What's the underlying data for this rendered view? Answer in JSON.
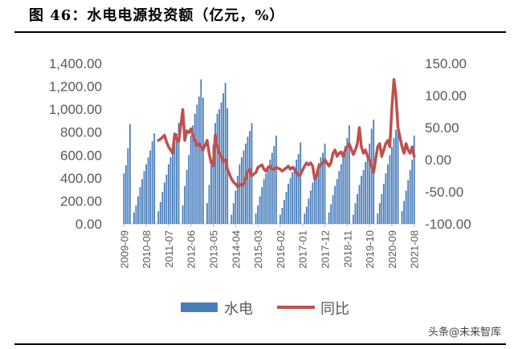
{
  "title": "图 46：水电电源投资额（亿元，%）",
  "watermark": "头条@未来智库",
  "colors": {
    "bar": "#4a7ebb",
    "line": "#c0504d",
    "axis": "#bfbfbf",
    "text": "#595959"
  },
  "chart_data": {
    "type": "bar+line",
    "title": "",
    "xlabel": "",
    "ylabel": "",
    "y_left": {
      "min": 0,
      "max": 1400,
      "step": 200,
      "ticks": [
        "0.00",
        "200.00",
        "400.00",
        "600.00",
        "800.00",
        "1,000.00",
        "1,200.00",
        "1,400.00"
      ]
    },
    "y_right": {
      "min": -100,
      "max": 150,
      "step": 50,
      "ticks": [
        "-100.00",
        "-50.00",
        "0.00",
        "50.00",
        "100.00",
        "150.00"
      ]
    },
    "x_tick_labels": [
      "2009-09",
      "2010-08",
      "2011-07",
      "2012-06",
      "2013-05",
      "2014-04",
      "2015-03",
      "2016-02",
      "2017-01",
      "2017-12",
      "2018-11",
      "2019-10",
      "2020-09",
      "2021-08"
    ],
    "legend": {
      "position": "bottom",
      "labels": [
        "水电",
        "同比"
      ]
    },
    "series": [
      {
        "name": "水电",
        "type": "bar",
        "axis": "left",
        "x": [
          "2009-09",
          "2009-10",
          "2009-11",
          "2009-12",
          "2010-02",
          "2010-03",
          "2010-04",
          "2010-05",
          "2010-06",
          "2010-07",
          "2010-08",
          "2010-09",
          "2010-10",
          "2010-11",
          "2010-12",
          "2011-02",
          "2011-03",
          "2011-04",
          "2011-05",
          "2011-06",
          "2011-07",
          "2011-08",
          "2011-09",
          "2011-10",
          "2011-11",
          "2011-12",
          "2012-02",
          "2012-03",
          "2012-04",
          "2012-05",
          "2012-06",
          "2012-07",
          "2012-08",
          "2012-09",
          "2012-10",
          "2012-11",
          "2012-12",
          "2013-02",
          "2013-03",
          "2013-04",
          "2013-05",
          "2013-06",
          "2013-07",
          "2013-08",
          "2013-09",
          "2013-10",
          "2013-11",
          "2013-12",
          "2014-02",
          "2014-03",
          "2014-04",
          "2014-05",
          "2014-06",
          "2014-07",
          "2014-08",
          "2014-09",
          "2014-10",
          "2014-11",
          "2014-12",
          "2015-02",
          "2015-03",
          "2015-04",
          "2015-05",
          "2015-06",
          "2015-07",
          "2015-08",
          "2015-09",
          "2015-10",
          "2015-11",
          "2015-12",
          "2016-02",
          "2016-03",
          "2016-04",
          "2016-05",
          "2016-06",
          "2016-07",
          "2016-08",
          "2016-09",
          "2016-10",
          "2016-11",
          "2016-12",
          "2017-02",
          "2017-03",
          "2017-04",
          "2017-05",
          "2017-06",
          "2017-07",
          "2017-08",
          "2017-09",
          "2017-10",
          "2017-11",
          "2017-12",
          "2018-02",
          "2018-03",
          "2018-04",
          "2018-05",
          "2018-06",
          "2018-07",
          "2018-08",
          "2018-09",
          "2018-10",
          "2018-11",
          "2018-12",
          "2019-02",
          "2019-03",
          "2019-04",
          "2019-05",
          "2019-06",
          "2019-07",
          "2019-08",
          "2019-09",
          "2019-10",
          "2019-11",
          "2019-12",
          "2020-02",
          "2020-03",
          "2020-04",
          "2020-05",
          "2020-06",
          "2020-07",
          "2020-08",
          "2020-09",
          "2020-10",
          "2020-11",
          "2020-12",
          "2021-02",
          "2021-03",
          "2021-04",
          "2021-05",
          "2021-06",
          "2021-07",
          "2021-08"
        ],
        "values": [
          440,
          510,
          660,
          870,
          100,
          160,
          240,
          320,
          390,
          460,
          520,
          580,
          640,
          720,
          790,
          110,
          190,
          280,
          360,
          430,
          520,
          580,
          660,
          720,
          790,
          880,
          160,
          330,
          470,
          600,
          770,
          860,
          960,
          1040,
          1110,
          1260,
          1100,
          180,
          340,
          510,
          690,
          880,
          960,
          1000,
          1060,
          1140,
          1230,
          1010,
          80,
          180,
          290,
          420,
          520,
          580,
          640,
          700,
          760,
          810,
          880,
          90,
          160,
          240,
          320,
          390,
          440,
          500,
          560,
          620,
          680,
          770,
          80,
          140,
          210,
          280,
          350,
          400,
          450,
          500,
          560,
          610,
          710,
          90,
          150,
          220,
          290,
          360,
          410,
          470,
          530,
          580,
          620,
          700,
          100,
          170,
          250,
          330,
          390,
          460,
          520,
          600,
          680,
          750,
          860,
          80,
          180,
          260,
          340,
          420,
          470,
          540,
          620,
          700,
          830,
          910,
          90,
          180,
          260,
          350,
          440,
          520,
          600,
          670,
          750,
          820,
          980,
          110,
          200,
          290,
          380,
          470,
          560,
          770
        ]
      },
      {
        "name": "同比",
        "type": "line",
        "axis": "right",
        "x": [
          "2011-02",
          "2011-03",
          "2011-04",
          "2011-05",
          "2011-06",
          "2011-07",
          "2011-08",
          "2011-09",
          "2011-10",
          "2011-11",
          "2011-12",
          "2012-02",
          "2012-03",
          "2012-04",
          "2012-05",
          "2012-06",
          "2012-07",
          "2012-08",
          "2012-09",
          "2012-10",
          "2012-11",
          "2012-12",
          "2013-02",
          "2013-03",
          "2013-04",
          "2013-05",
          "2013-06",
          "2013-07",
          "2013-08",
          "2013-09",
          "2013-10",
          "2013-11",
          "2013-12",
          "2014-02",
          "2014-03",
          "2014-04",
          "2014-05",
          "2014-06",
          "2014-07",
          "2014-08",
          "2014-09",
          "2014-10",
          "2014-11",
          "2014-12",
          "2015-02",
          "2015-03",
          "2015-04",
          "2015-05",
          "2015-06",
          "2015-07",
          "2015-08",
          "2015-09",
          "2015-10",
          "2015-11",
          "2015-12",
          "2016-02",
          "2016-03",
          "2016-04",
          "2016-05",
          "2016-06",
          "2016-07",
          "2016-08",
          "2016-09",
          "2016-10",
          "2016-11",
          "2016-12",
          "2017-02",
          "2017-03",
          "2017-04",
          "2017-05",
          "2017-06",
          "2017-07",
          "2017-08",
          "2017-09",
          "2017-10",
          "2017-11",
          "2017-12",
          "2018-02",
          "2018-03",
          "2018-04",
          "2018-05",
          "2018-06",
          "2018-07",
          "2018-08",
          "2018-09",
          "2018-10",
          "2018-11",
          "2018-12",
          "2019-02",
          "2019-03",
          "2019-04",
          "2019-05",
          "2019-06",
          "2019-07",
          "2019-08",
          "2019-09",
          "2019-10",
          "2019-11",
          "2019-12",
          "2020-02",
          "2020-03",
          "2020-04",
          "2020-05",
          "2020-06",
          "2020-07",
          "2020-08",
          "2020-09",
          "2020-10",
          "2020-11",
          "2020-12",
          "2021-02",
          "2021-03",
          "2021-04",
          "2021-05",
          "2021-06",
          "2021-07",
          "2021-08"
        ],
        "values": [
          30,
          32,
          35,
          38,
          28,
          20,
          15,
          10,
          40,
          32,
          28,
          78,
          30,
          45,
          42,
          48,
          38,
          30,
          22,
          25,
          20,
          15,
          30,
          10,
          -5,
          -10,
          38,
          20,
          10,
          5,
          -3,
          0,
          -15,
          -30,
          -35,
          -38,
          -42,
          -38,
          -40,
          -38,
          -30,
          -18,
          -15,
          -25,
          -20,
          -12,
          -10,
          -8,
          -15,
          -18,
          -12,
          -10,
          -15,
          -15,
          -12,
          -15,
          -18,
          -15,
          -13,
          -10,
          -15,
          -12,
          -15,
          -20,
          -25,
          -23,
          -10,
          -5,
          -8,
          -5,
          -10,
          -30,
          -25,
          -10,
          -8,
          -5,
          0,
          -10,
          -5,
          10,
          15,
          5,
          10,
          12,
          5,
          15,
          20,
          25,
          8,
          15,
          25,
          50,
          20,
          10,
          15,
          5,
          0,
          -10,
          -20,
          20,
          25,
          5,
          15,
          25,
          30,
          20,
          80,
          125,
          100,
          50,
          20,
          10,
          25,
          15,
          10,
          20,
          5
        ]
      }
    ]
  }
}
